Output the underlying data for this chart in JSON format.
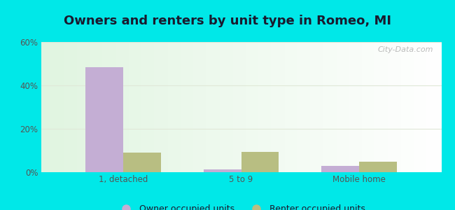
{
  "title": "Owners and renters by unit type in Romeo, MI",
  "categories": [
    "1, detached",
    "5 to 9",
    "Mobile home"
  ],
  "owner_values": [
    48.5,
    1.2,
    3.0
  ],
  "renter_values": [
    9.0,
    9.2,
    5.0
  ],
  "owner_color": "#c4aed4",
  "renter_color": "#b8be82",
  "ylim": [
    0,
    60
  ],
  "yticks": [
    0,
    20,
    40,
    60
  ],
  "ytick_labels": [
    "0%",
    "20%",
    "40%",
    "60%"
  ],
  "outer_background": "#00e8e8",
  "watermark": "City-Data.com",
  "legend_owner": "Owner occupied units",
  "legend_renter": "Renter occupied units",
  "bar_width": 0.32,
  "title_fontsize": 13,
  "axis_fontsize": 8.5,
  "legend_fontsize": 9,
  "title_color": "#1a1a2e",
  "tick_color": "#555555",
  "grid_color": "#e0e8d8"
}
